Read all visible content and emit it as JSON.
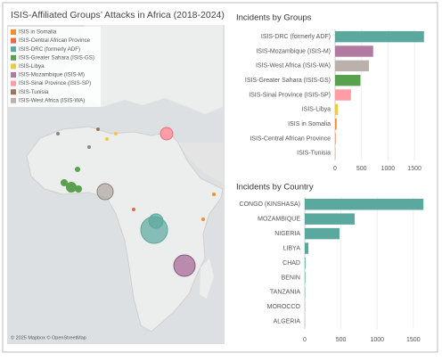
{
  "title": "ISIS-Affiliated Groups’ Attacks in Africa (2018-2024)",
  "map": {
    "attribution": "© 2025 Mapbox © OpenStreetMap",
    "legend": [
      {
        "name": "ISIS in Somalia",
        "color": "#f28e2b"
      },
      {
        "name": "ISIS-Central African Province",
        "color": "#e8684a"
      },
      {
        "name": "ISIS-DRC (formerly ADF)",
        "color": "#5ba89e"
      },
      {
        "name": "ISIS-Greater Sahara (ISIS-GS)",
        "color": "#59a14f"
      },
      {
        "name": "ISIS-Libya",
        "color": "#edc948"
      },
      {
        "name": "ISIS-Mozambique (ISIS-M)",
        "color": "#b07aa1"
      },
      {
        "name": "ISIS-Sinai Province (ISIS-SP)",
        "color": "#ff9da7"
      },
      {
        "name": "ISIS-Tunisia",
        "color": "#9c755f"
      },
      {
        "name": "ISIS-West Africa (ISIS-WA)",
        "color": "#bab0ac"
      }
    ]
  },
  "chart_data": [
    {
      "type": "bar",
      "title": "Incidents by Groups",
      "categories": [
        "ISIS-DRC (formerly ADF)",
        "ISIS-Mozambique (ISIS-M)",
        "ISIS-West Africa (ISIS-WA)",
        "ISIS-Greater Sahara (ISIS-GS)",
        "ISIS-Sinai Province (ISIS-SP)",
        "ISIS-Libya",
        "ISIS in Somalia",
        "ISIS-Central African Province",
        "ISIS-Tunisia"
      ],
      "values": [
        1680,
        720,
        640,
        480,
        300,
        50,
        30,
        10,
        3
      ],
      "colors": [
        "#5ba89e",
        "#b07aa1",
        "#bab0ac",
        "#59a14f",
        "#ff9da7",
        "#edc948",
        "#f28e2b",
        "#e8684a",
        "#9c755f"
      ],
      "xlim": [
        0,
        1700
      ],
      "xticks": [
        0,
        500,
        1000,
        1500
      ],
      "grid": true
    },
    {
      "type": "bar",
      "title": "Incidents by Country",
      "categories": [
        "CONGO (KINSHASA)",
        "MOZAMBIQUE",
        "NIGERIA",
        "LIBYA",
        "CHAD",
        "BENIN",
        "TANZANIA",
        "MOROCCO",
        "ALGERIA"
      ],
      "values": [
        1640,
        690,
        480,
        50,
        10,
        8,
        5,
        3,
        2
      ],
      "color": "#5ba89e",
      "xlim": [
        0,
        1650
      ],
      "xticks": [
        0,
        500,
        1000,
        1500
      ],
      "grid": true
    }
  ]
}
